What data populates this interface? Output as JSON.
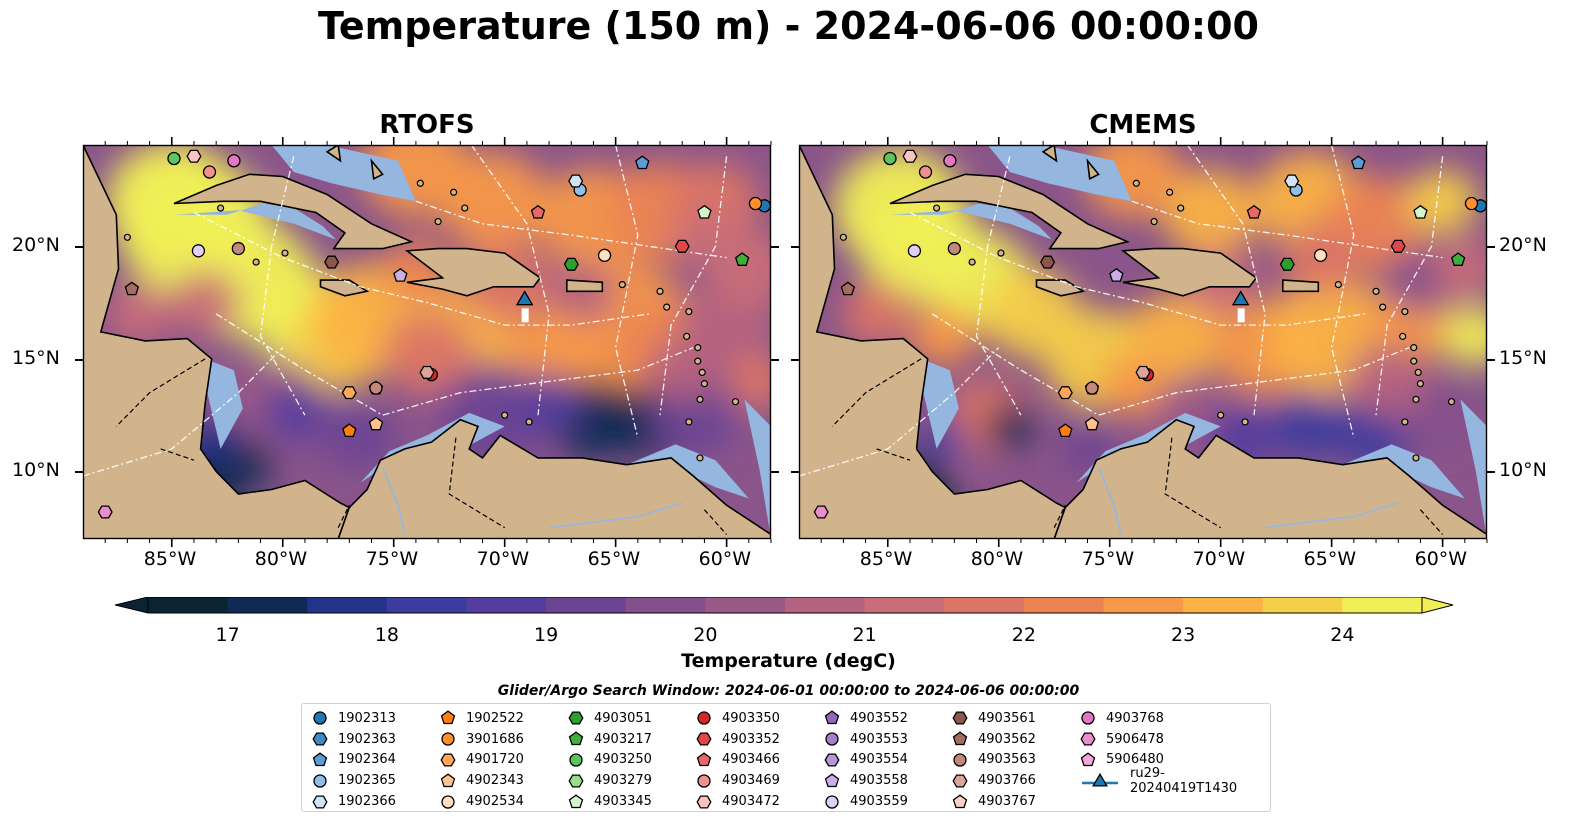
{
  "title": "Temperature (150 m) - 2024-06-06 00:00:00",
  "panels": [
    {
      "title": "RTOFS"
    },
    {
      "title": "CMEMS"
    }
  ],
  "map": {
    "lon_range": [
      -89,
      -58
    ],
    "lat_range": [
      7,
      24.5
    ],
    "x_ticks": [
      "85°W",
      "80°W",
      "75°W",
      "70°W",
      "65°W",
      "60°W"
    ],
    "y_ticks": [
      "20°N",
      "15°N",
      "10°N"
    ],
    "land_color": "#d1b48c",
    "shelf_color": "#94b6df",
    "deep_color": "#062333"
  },
  "colorbar": {
    "label": "Temperature (degC)",
    "ticks": [
      "17",
      "18",
      "19",
      "20",
      "21",
      "22",
      "23",
      "24"
    ],
    "min": 16.5,
    "max": 24.5,
    "colors": [
      "#0a2434",
      "#0e2a55",
      "#233389",
      "#3b3c9e",
      "#553d9e",
      "#6c4494",
      "#84508c",
      "#9a5a88",
      "#b46380",
      "#c96e78",
      "#db7566",
      "#ec8452",
      "#f7984a",
      "#fbb344",
      "#f6cf49",
      "#f0ef56"
    ]
  },
  "search_window": "Glider/Argo Search Window: 2024-06-01 00:00:00 to 2024-06-06 00:00:00",
  "legend": [
    {
      "label": "1902313",
      "marker": "circle",
      "color": "#1f77b4"
    },
    {
      "label": "1902363",
      "marker": "hexagon",
      "color": "#3f8ac4"
    },
    {
      "label": "1902364",
      "marker": "pentagon",
      "color": "#5c9bd6"
    },
    {
      "label": "1902365",
      "marker": "circle",
      "color": "#8fbfe8"
    },
    {
      "label": "1902366",
      "marker": "hexagon",
      "color": "#cfe3f5"
    },
    {
      "label": "1902522",
      "marker": "pentagon",
      "color": "#ff7f0e"
    },
    {
      "label": "3901686",
      "marker": "circle",
      "color": "#ff8f2e"
    },
    {
      "label": "4901720",
      "marker": "hexagon",
      "color": "#ffa85a"
    },
    {
      "label": "4902343",
      "marker": "pentagon",
      "color": "#ffc28c"
    },
    {
      "label": "4902534",
      "marker": "circle",
      "color": "#ffe0c0"
    },
    {
      "label": "4903051",
      "marker": "hexagon",
      "color": "#2ca02c"
    },
    {
      "label": "4903217",
      "marker": "pentagon",
      "color": "#3daf3d"
    },
    {
      "label": "4903250",
      "marker": "circle",
      "color": "#5fc45f"
    },
    {
      "label": "4903279",
      "marker": "hexagon",
      "color": "#98df8a"
    },
    {
      "label": "4903345",
      "marker": "pentagon",
      "color": "#d4f4cc"
    },
    {
      "label": "4903350",
      "marker": "circle",
      "color": "#d62728"
    },
    {
      "label": "4903352",
      "marker": "hexagon",
      "color": "#e04848"
    },
    {
      "label": "4903466",
      "marker": "pentagon",
      "color": "#e86868"
    },
    {
      "label": "4903469",
      "marker": "circle",
      "color": "#f29090"
    },
    {
      "label": "4903472",
      "marker": "hexagon",
      "color": "#fbc4c4"
    },
    {
      "label": "4903552",
      "marker": "pentagon",
      "color": "#9467bd"
    },
    {
      "label": "4903553",
      "marker": "circle",
      "color": "#a37fcc"
    },
    {
      "label": "4903554",
      "marker": "hexagon",
      "color": "#b597d8"
    },
    {
      "label": "4903558",
      "marker": "pentagon",
      "color": "#c8b0e6"
    },
    {
      "label": "4903559",
      "marker": "circle",
      "color": "#e0cff5"
    },
    {
      "label": "4903561",
      "marker": "hexagon",
      "color": "#8c564b"
    },
    {
      "label": "4903562",
      "marker": "pentagon",
      "color": "#a56d60"
    },
    {
      "label": "4903563",
      "marker": "circle",
      "color": "#c4897d"
    },
    {
      "label": "4903766",
      "marker": "hexagon",
      "color": "#dba59a"
    },
    {
      "label": "4903767",
      "marker": "pentagon",
      "color": "#f6d2c8"
    },
    {
      "label": "4903768",
      "marker": "circle",
      "color": "#e377c2"
    },
    {
      "label": "5906478",
      "marker": "hexagon",
      "color": "#e98dcb"
    },
    {
      "label": "5906480",
      "marker": "pentagon",
      "color": "#f2a8da"
    },
    {
      "label": "ru29-20240419T1430",
      "marker": "triangle",
      "color": "#1f77b4"
    }
  ],
  "floats": [
    {
      "id": "1902313",
      "lon": -58.3,
      "lat": 21.8
    },
    {
      "id": "1902364",
      "lon": -63.8,
      "lat": 23.7
    },
    {
      "id": "1902365",
      "lon": -66.6,
      "lat": 22.5
    },
    {
      "id": "1902366",
      "lon": -66.8,
      "lat": 22.9
    },
    {
      "id": "1902522",
      "lon": -77.0,
      "lat": 11.8
    },
    {
      "id": "3901686",
      "lon": -58.7,
      "lat": 21.9
    },
    {
      "id": "4901720",
      "lon": -77.0,
      "lat": 13.5
    },
    {
      "id": "4902343",
      "lon": -75.8,
      "lat": 12.1
    },
    {
      "id": "4902534",
      "lon": -65.5,
      "lat": 19.6
    },
    {
      "id": "4903051",
      "lon": -67.0,
      "lat": 19.2
    },
    {
      "id": "4903217",
      "lon": -59.3,
      "lat": 19.4
    },
    {
      "id": "4903250",
      "lon": -84.9,
      "lat": 23.9
    },
    {
      "id": "4903345",
      "lon": -61.0,
      "lat": 21.5
    },
    {
      "id": "4903350",
      "lon": -73.3,
      "lat": 14.3
    },
    {
      "id": "4903352",
      "lon": -62.0,
      "lat": 20.0
    },
    {
      "id": "4903469",
      "lon": -83.3,
      "lat": 23.3
    },
    {
      "id": "4903472",
      "lon": -84.0,
      "lat": 24.0
    },
    {
      "id": "4903466",
      "lon": -68.5,
      "lat": 21.5
    },
    {
      "id": "4903558",
      "lon": -74.7,
      "lat": 18.7
    },
    {
      "id": "4903559",
      "lon": -83.8,
      "lat": 19.8
    },
    {
      "id": "4903561",
      "lon": -77.8,
      "lat": 19.3
    },
    {
      "id": "4903562",
      "lon": -86.8,
      "lat": 18.1
    },
    {
      "id": "4903563",
      "lon": -82.0,
      "lat": 19.9
    },
    {
      "id": "4903766",
      "lon": -73.5,
      "lat": 14.4
    },
    {
      "id": "4903768",
      "lon": -82.2,
      "lat": 23.8
    },
    {
      "id": "4903767",
      "lon": -75.8,
      "lat": 13.7
    },
    {
      "id": "5906478",
      "lon": -88.0,
      "lat": 8.2
    },
    {
      "id": "4903563",
      "lon": -75.8,
      "lat": 13.7
    }
  ],
  "glider": {
    "id": "ru29-20240419T1430",
    "lon": -69.1,
    "lat": 17.6
  }
}
